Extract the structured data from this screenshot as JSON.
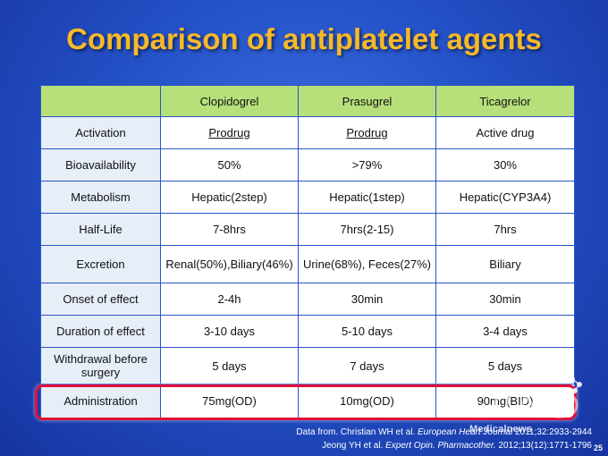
{
  "title": "Comparison of antiplatelet agents",
  "table": {
    "headers": [
      "",
      "Clopidogrel",
      "Prasugrel",
      "Ticagrelor"
    ],
    "rows": [
      [
        "Activation",
        "Prodrug",
        "Prodrug",
        "Active drug"
      ],
      [
        "Bioavailability",
        "50%",
        ">79%",
        "30%"
      ],
      [
        "Metabolism",
        "Hepatic(2step)",
        "Hepatic(1step)",
        "Hepatic(CYP3A4)"
      ],
      [
        "Half-Life",
        "7-8hrs",
        "7hrs(2-15)",
        "7hrs"
      ],
      [
        "Excretion",
        "Renal(50%),Biliary(46%)",
        "Urine(68%), Feces(27%)",
        "Biliary"
      ],
      [
        "Onset of effect",
        "2-4h",
        "30min",
        "30min"
      ],
      [
        "Duration of effect",
        "3-10 days",
        "5-10 days",
        "3-4 days"
      ],
      [
        "Withdrawal before surgery",
        "5 days",
        "7 days",
        "5 days"
      ],
      [
        "Administration",
        "75mg(OD)",
        "10mg(OD)",
        "90mg(BID)"
      ]
    ]
  },
  "source": {
    "line1_prefix": "Data from.  Christian WH et al. ",
    "line1_journal": "European Heart Journal",
    "line1_suffix": " 2011;32:2933-2944",
    "line2_prefix": "Jeong YH et al. ",
    "line2_journal": "Expert Opin. Pharmacother.",
    "line2_suffix": " 2012;13(12):1771-1796"
  },
  "watermark": "Medicalnews",
  "page_number": "25",
  "colors": {
    "title": "#f6b928",
    "header_bg": "#b7e07a",
    "highlight": "#e0103a"
  }
}
